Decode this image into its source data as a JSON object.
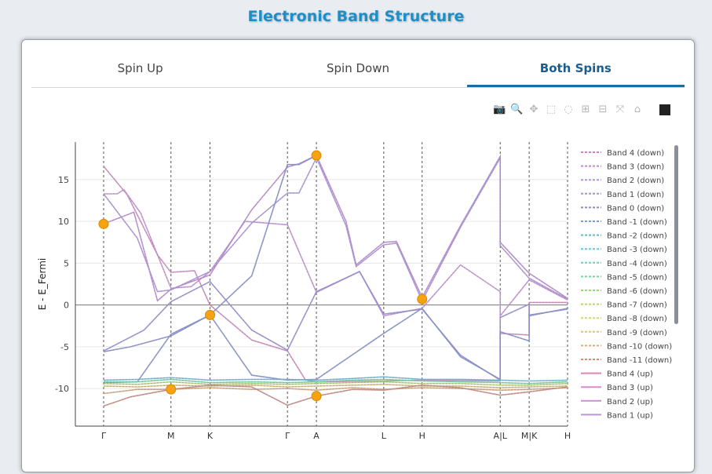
{
  "page": {
    "title": "Electronic Band Structure"
  },
  "tabs": [
    {
      "label": "Spin Up"
    },
    {
      "label": "Spin Down"
    },
    {
      "label": "Both Spins"
    }
  ],
  "modebar": [
    {
      "name": "camera-icon",
      "glyph": "📷"
    },
    {
      "name": "zoom-icon",
      "glyph": "🔍"
    },
    {
      "name": "pan-icon",
      "glyph": "✥"
    },
    {
      "name": "box-select-icon",
      "glyph": "⬚"
    },
    {
      "name": "lasso-icon",
      "glyph": "◌"
    },
    {
      "name": "zoom-in-icon",
      "glyph": "⊞"
    },
    {
      "name": "zoom-out-icon",
      "glyph": "⊟"
    },
    {
      "name": "autoscale-icon",
      "glyph": "⤧"
    },
    {
      "name": "home-icon",
      "glyph": "⌂"
    }
  ],
  "chart_data": {
    "type": "line",
    "ylabel": "E - E_Fermi",
    "ylim": [
      -14.5,
      19.5
    ],
    "yticks": [
      15,
      10,
      5,
      0,
      -5,
      -10
    ],
    "kpath": [
      {
        "label": "Γ",
        "x": 0
      },
      {
        "label": "M",
        "x": 1
      },
      {
        "label": "K",
        "x": 1.58
      },
      {
        "label": "Γ",
        "x": 2.73
      },
      {
        "label": "A",
        "x": 3.16
      },
      {
        "label": "L",
        "x": 4.16
      },
      {
        "label": "H",
        "x": 4.73
      },
      {
        "label": "A|L",
        "x": 5.89
      },
      {
        "label": "M|K",
        "x": 6.32
      },
      {
        "label": "H",
        "x": 6.89
      }
    ],
    "xlim": [
      -0.42,
      6.89
    ],
    "highlight_points": [
      {
        "x": 0,
        "y": 9.7
      },
      {
        "x": 1,
        "y": -10.1
      },
      {
        "x": 1.58,
        "y": -1.2
      },
      {
        "x": 3.16,
        "y": 17.9
      },
      {
        "x": 3.16,
        "y": -10.9
      },
      {
        "x": 4.73,
        "y": 0.7
      }
    ],
    "legend": [
      {
        "name": "Band 4 (down)",
        "color": "#c882c8",
        "dash": true
      },
      {
        "name": "Band 3 (down)",
        "color": "#c08ad0",
        "dash": true
      },
      {
        "name": "Band 2 (down)",
        "color": "#b292d4",
        "dash": true
      },
      {
        "name": "Band 1 (down)",
        "color": "#a096d4",
        "dash": true
      },
      {
        "name": "Band 0 (down)",
        "color": "#8c8cc8",
        "dash": true
      },
      {
        "name": "Band -1 (down)",
        "color": "#7aa0c8",
        "dash": true
      },
      {
        "name": "Band -2 (down)",
        "color": "#6cb4d0",
        "dash": true
      },
      {
        "name": "Band -3 (down)",
        "color": "#64c8d6",
        "dash": true
      },
      {
        "name": "Band -4 (down)",
        "color": "#66d2c0",
        "dash": true
      },
      {
        "name": "Band -5 (down)",
        "color": "#78d49a",
        "dash": true
      },
      {
        "name": "Band -6 (down)",
        "color": "#96d87a",
        "dash": true
      },
      {
        "name": "Band -7 (down)",
        "color": "#b8d86a",
        "dash": true
      },
      {
        "name": "Band -8 (down)",
        "color": "#d8d26a",
        "dash": true
      },
      {
        "name": "Band -9 (down)",
        "color": "#e0c270",
        "dash": true
      },
      {
        "name": "Band -10 (down)",
        "color": "#dcaa78",
        "dash": true
      },
      {
        "name": "Band -11 (down)",
        "color": "#d09078",
        "dash": true
      },
      {
        "name": "Band 4 (up)",
        "color": "#e084b0",
        "dash": false
      },
      {
        "name": "Band 3 (up)",
        "color": "#dc8ccc",
        "dash": false
      },
      {
        "name": "Band 2 (up)",
        "color": "#cc90d8",
        "dash": false
      },
      {
        "name": "Band 1 (up)",
        "color": "#bc96dc",
        "dash": false
      }
    ],
    "series": [
      {
        "color": "#d88ab8",
        "points": [
          [
            0,
            16.6
          ],
          [
            0.35,
            13.2
          ],
          [
            0.8,
            6
          ],
          [
            1,
            3.9
          ],
          [
            1.35,
            4.1
          ],
          [
            1.58,
            0
          ],
          [
            2.2,
            -4.2
          ],
          [
            2.73,
            -5.5
          ],
          [
            3.0,
            -9
          ],
          [
            3.16,
            -9.2
          ],
          [
            4.16,
            -9.1
          ],
          [
            4.73,
            -9.0
          ],
          [
            5.89,
            -9.1
          ],
          [
            5.89,
            -3.4
          ],
          [
            6.32,
            -3.6
          ],
          [
            6.32,
            0.3
          ],
          [
            6.89,
            0.3
          ]
        ]
      },
      {
        "color": "#cc92d4",
        "points": [
          [
            0,
            13.3
          ],
          [
            0.2,
            13.3
          ],
          [
            0.3,
            13.8
          ],
          [
            0.55,
            11
          ],
          [
            1,
            2
          ],
          [
            1.3,
            2.2
          ],
          [
            1.58,
            4
          ],
          [
            2.1,
            10
          ],
          [
            2.73,
            9.6
          ],
          [
            3.16,
            1.5
          ],
          [
            3.8,
            4
          ],
          [
            4.16,
            -1.3
          ],
          [
            4.73,
            -0.4
          ],
          [
            5.3,
            4.8
          ],
          [
            5.89,
            1.6
          ],
          [
            5.89,
            -1.3
          ],
          [
            6.32,
            3
          ],
          [
            6.89,
            0.6
          ]
        ]
      },
      {
        "color": "#c48ad0",
        "points": [
          [
            0,
            9.7
          ],
          [
            0.45,
            11.1
          ],
          [
            0.8,
            0.5
          ],
          [
            1,
            1.9
          ],
          [
            1.58,
            3.6
          ],
          [
            2.2,
            11.4
          ],
          [
            2.73,
            16.5
          ],
          [
            2.9,
            16.9
          ],
          [
            3.16,
            17.9
          ],
          [
            3.6,
            10
          ],
          [
            3.75,
            4.8
          ],
          [
            4.16,
            7.5
          ],
          [
            4.35,
            7.6
          ],
          [
            4.73,
            0.9
          ],
          [
            5.3,
            9.5
          ],
          [
            5.89,
            17.8
          ],
          [
            5.89,
            7.5
          ],
          [
            6.32,
            3.8
          ],
          [
            6.89,
            0.8
          ]
        ]
      },
      {
        "color": "#b496d6",
        "points": [
          [
            0,
            13.3
          ],
          [
            0.5,
            8
          ],
          [
            0.8,
            1.6
          ],
          [
            1,
            1.8
          ],
          [
            1.58,
            4
          ],
          [
            2.2,
            9.8
          ],
          [
            2.73,
            13.4
          ],
          [
            2.9,
            13.4
          ],
          [
            3.16,
            17.6
          ],
          [
            3.6,
            9.5
          ],
          [
            3.75,
            4.6
          ],
          [
            4.16,
            7.2
          ],
          [
            4.35,
            7.4
          ],
          [
            4.73,
            0.5
          ],
          [
            5.3,
            9.3
          ],
          [
            5.89,
            17.6
          ],
          [
            5.89,
            7.1
          ],
          [
            6.32,
            3.2
          ],
          [
            6.89,
            0.7
          ]
        ]
      },
      {
        "color": "#9a8ed0",
        "points": [
          [
            0,
            -5.5
          ],
          [
            0.6,
            -3
          ],
          [
            1,
            0.4
          ],
          [
            1.58,
            2.8
          ],
          [
            2.2,
            -3
          ],
          [
            2.73,
            -5.4
          ],
          [
            3.16,
            1.6
          ],
          [
            3.8,
            4
          ],
          [
            4.16,
            -1.1
          ],
          [
            4.73,
            -0.5
          ],
          [
            5.3,
            -6
          ],
          [
            5.89,
            -9
          ],
          [
            5.89,
            -1.5
          ],
          [
            6.32,
            0.1
          ],
          [
            6.32,
            -1.3
          ],
          [
            6.89,
            -0.4
          ]
        ]
      },
      {
        "color": "#8a8ec8",
        "points": [
          [
            0,
            -5.6
          ],
          [
            0.4,
            -5
          ],
          [
            1,
            -3.7
          ],
          [
            1.58,
            -1.2
          ],
          [
            2.2,
            3.5
          ],
          [
            2.73,
            16.8
          ],
          [
            2.9,
            16.8
          ],
          [
            3.16,
            17.9
          ]
        ]
      },
      {
        "color": "#8892c8",
        "points": [
          [
            0,
            -9.3
          ],
          [
            0.5,
            -9.2
          ],
          [
            1,
            -3.5
          ],
          [
            1.58,
            -1.2
          ],
          [
            2.2,
            -8.4
          ],
          [
            2.73,
            -9.0
          ],
          [
            3.16,
            -8.9
          ],
          [
            4.16,
            -3.4
          ],
          [
            4.73,
            -0.4
          ],
          [
            5.3,
            -6.2
          ],
          [
            5.89,
            -8.9
          ],
          [
            5.89,
            -3.2
          ],
          [
            6.32,
            -4.3
          ],
          [
            6.32,
            -1.2
          ],
          [
            6.89,
            -0.5
          ]
        ]
      },
      {
        "color": "#70b8d4",
        "points": [
          [
            0,
            -9.0
          ],
          [
            0.5,
            -8.9
          ],
          [
            1,
            -8.7
          ],
          [
            1.58,
            -9.0
          ],
          [
            2.2,
            -8.9
          ],
          [
            2.73,
            -8.9
          ],
          [
            3.16,
            -9.0
          ],
          [
            3.7,
            -8.8
          ],
          [
            4.16,
            -8.6
          ],
          [
            4.73,
            -8.9
          ],
          [
            5.3,
            -8.9
          ],
          [
            5.89,
            -9.0
          ],
          [
            6.32,
            -9.1
          ],
          [
            6.89,
            -9.0
          ]
        ]
      },
      {
        "color": "#78d49c",
        "points": [
          [
            0,
            -9.2
          ],
          [
            0.5,
            -9.2
          ],
          [
            1,
            -8.9
          ],
          [
            1.58,
            -9.3
          ],
          [
            2.2,
            -9.2
          ],
          [
            2.73,
            -9.3
          ],
          [
            3.16,
            -9.2
          ],
          [
            3.7,
            -9.0
          ],
          [
            4.16,
            -8.9
          ],
          [
            4.73,
            -9.1
          ],
          [
            5.3,
            -9.2
          ],
          [
            5.89,
            -9.3
          ],
          [
            6.32,
            -9.4
          ],
          [
            6.89,
            -9.2
          ]
        ]
      },
      {
        "color": "#b8d86a",
        "points": [
          [
            0,
            -9.4
          ],
          [
            0.5,
            -9.5
          ],
          [
            1,
            -9.2
          ],
          [
            1.58,
            -9.5
          ],
          [
            2.2,
            -9.4
          ],
          [
            2.73,
            -9.5
          ],
          [
            3.16,
            -9.4
          ],
          [
            3.7,
            -9.3
          ],
          [
            4.16,
            -9.2
          ],
          [
            4.73,
            -9.4
          ],
          [
            5.3,
            -9.4
          ],
          [
            5.89,
            -9.6
          ],
          [
            6.32,
            -9.6
          ],
          [
            6.89,
            -9.4
          ]
        ]
      },
      {
        "color": "#e0c070",
        "points": [
          [
            0,
            -9.7
          ],
          [
            0.5,
            -9.8
          ],
          [
            1,
            -9.6
          ],
          [
            1.58,
            -9.7
          ],
          [
            2.2,
            -9.6
          ],
          [
            2.73,
            -9.8
          ],
          [
            3.16,
            -9.7
          ],
          [
            3.7,
            -9.6
          ],
          [
            4.16,
            -9.5
          ],
          [
            4.73,
            -9.7
          ],
          [
            5.3,
            -9.7
          ],
          [
            5.89,
            -9.9
          ],
          [
            6.32,
            -9.8
          ],
          [
            6.89,
            -9.7
          ]
        ]
      },
      {
        "color": "#dcaa78",
        "points": [
          [
            0,
            -10.6
          ],
          [
            0.5,
            -10.1
          ],
          [
            1,
            -10.1
          ],
          [
            1.58,
            -9.9
          ],
          [
            2.2,
            -10.1
          ],
          [
            2.73,
            -10.0
          ],
          [
            3.16,
            -10.2
          ],
          [
            3.7,
            -9.9
          ],
          [
            4.16,
            -10.1
          ],
          [
            4.73,
            -9.9
          ],
          [
            5.3,
            -10.0
          ],
          [
            5.89,
            -10.2
          ],
          [
            6.32,
            -10.1
          ],
          [
            6.89,
            -9.9
          ]
        ]
      },
      {
        "color": "#d08a78",
        "points": [
          [
            0,
            -12.1
          ],
          [
            0.4,
            -11.0
          ],
          [
            1,
            -10.1
          ],
          [
            1.58,
            -9.6
          ],
          [
            2.2,
            -9.8
          ],
          [
            2.73,
            -12.0
          ],
          [
            3.16,
            -10.9
          ],
          [
            3.7,
            -10.1
          ],
          [
            4.16,
            -10.2
          ],
          [
            4.73,
            -9.6
          ],
          [
            5.3,
            -9.9
          ],
          [
            5.89,
            -10.8
          ],
          [
            6.32,
            -10.4
          ],
          [
            6.89,
            -9.8
          ]
        ]
      }
    ]
  }
}
